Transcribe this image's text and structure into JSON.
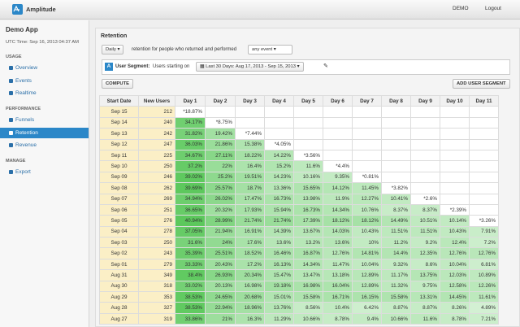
{
  "topbar": {
    "brand": "Amplitude",
    "links": [
      "DEMO",
      "Logout"
    ]
  },
  "sidebar": {
    "app": "Demo App",
    "time": "UTC Time: Sep 16, 2013 04:37 AM",
    "sections": [
      {
        "title": "USAGE",
        "items": [
          "Overview",
          "Events",
          "Realtime"
        ]
      },
      {
        "title": "PERFORMANCE",
        "items": [
          "Funnels",
          "Retention",
          "Revenue"
        ]
      },
      {
        "title": "MANAGE",
        "items": [
          "Export"
        ]
      }
    ]
  },
  "panel": {
    "title": "Retention",
    "interval": "Daily",
    "sentence": "retention for people who returned and performed",
    "event": "any event",
    "segment_label": "User Segment:",
    "segment_text": "Users starting on",
    "date_range": "Last 30 Days: Aug 17, 2013 - Sep 15, 2013",
    "compute": "COMPUTE",
    "add_segment": "ADD USER SEGMENT"
  },
  "table": {
    "headers": [
      "Start Date",
      "New Users",
      "Day 1",
      "Day 2",
      "Day 3",
      "Day 4",
      "Day 5",
      "Day 6",
      "Day 7",
      "Day 8",
      "Day 9",
      "Day 10",
      "Day 11"
    ],
    "rows": [
      [
        "Sep 15",
        212,
        "*18.87%"
      ],
      [
        "Sep 14",
        240,
        "34.17%",
        "*8.75%"
      ],
      [
        "Sep 13",
        242,
        "31.82%",
        "19.42%",
        "*7.44%"
      ],
      [
        "Sep 12",
        247,
        "36.03%",
        "21.86%",
        "15.38%",
        "*4.05%"
      ],
      [
        "Sep 11",
        225,
        "34.67%",
        "27.11%",
        "18.22%",
        "14.22%",
        "*3.56%"
      ],
      [
        "Sep 10",
        250,
        "37.2%",
        "22%",
        "16.4%",
        "15.2%",
        "11.6%",
        "*4.4%"
      ],
      [
        "Sep 09",
        246,
        "39.02%",
        "25.2%",
        "19.51%",
        "14.23%",
        "10.16%",
        "9.35%",
        "*0.81%"
      ],
      [
        "Sep 08",
        262,
        "39.69%",
        "25.57%",
        "18.7%",
        "13.36%",
        "15.65%",
        "14.12%",
        "11.45%",
        "*3.82%"
      ],
      [
        "Sep 07",
        269,
        "34.94%",
        "26.02%",
        "17.47%",
        "16.73%",
        "13.98%",
        "11.9%",
        "12.27%",
        "10.41%",
        "*2.6%"
      ],
      [
        "Sep 06",
        251,
        "36.65%",
        "20.32%",
        "17.93%",
        "15.94%",
        "16.73%",
        "14.34%",
        "10.76%",
        "8.37%",
        "8.37%",
        "*2.39%"
      ],
      [
        "Sep 05",
        276,
        "40.94%",
        "28.99%",
        "21.74%",
        "21.74%",
        "17.39%",
        "18.12%",
        "18.12%",
        "14.49%",
        "10.51%",
        "10.14%",
        "*3.26%"
      ],
      [
        "Sep 04",
        278,
        "37.05%",
        "21.94%",
        "16.91%",
        "14.39%",
        "13.67%",
        "14.03%",
        "10.43%",
        "11.51%",
        "11.51%",
        "10.43%",
        "7.91%"
      ],
      [
        "Sep 03",
        250,
        "31.6%",
        "24%",
        "17.6%",
        "13.6%",
        "13.2%",
        "13.6%",
        "10%",
        "11.2%",
        "9.2%",
        "12.4%",
        "7.2%"
      ],
      [
        "Sep 02",
        243,
        "35.39%",
        "25.51%",
        "18.52%",
        "16.46%",
        "16.87%",
        "12.76%",
        "14.81%",
        "14.4%",
        "12.35%",
        "12.76%",
        "12.76%"
      ],
      [
        "Sep 01",
        279,
        "33.33%",
        "20.43%",
        "17.2%",
        "16.13%",
        "14.34%",
        "11.47%",
        "10.04%",
        "9.32%",
        "8.6%",
        "10.04%",
        "6.81%"
      ],
      [
        "Aug 31",
        349,
        "38.4%",
        "26.93%",
        "20.34%",
        "15.47%",
        "13.47%",
        "13.18%",
        "12.89%",
        "11.17%",
        "13.75%",
        "12.03%",
        "10.89%"
      ],
      [
        "Aug 30",
        318,
        "33.02%",
        "20.13%",
        "16.98%",
        "19.18%",
        "16.98%",
        "16.04%",
        "12.89%",
        "11.32%",
        "9.75%",
        "12.58%",
        "12.26%"
      ],
      [
        "Aug 29",
        353,
        "38.53%",
        "24.65%",
        "20.68%",
        "15.01%",
        "15.58%",
        "16.71%",
        "16.15%",
        "15.58%",
        "13.31%",
        "14.45%",
        "11.61%"
      ],
      [
        "Aug 28",
        327,
        "38.53%",
        "22.94%",
        "18.96%",
        "13.76%",
        "8.56%",
        "10.4%",
        "6.42%",
        "8.87%",
        "8.87%",
        "8.26%",
        "4.89%"
      ],
      [
        "Aug 27",
        319,
        "33.86%",
        "21%",
        "16.3%",
        "11.29%",
        "10.66%",
        "8.78%",
        "9.4%",
        "10.66%",
        "11.6%",
        "8.78%",
        "7.21%"
      ]
    ]
  }
}
